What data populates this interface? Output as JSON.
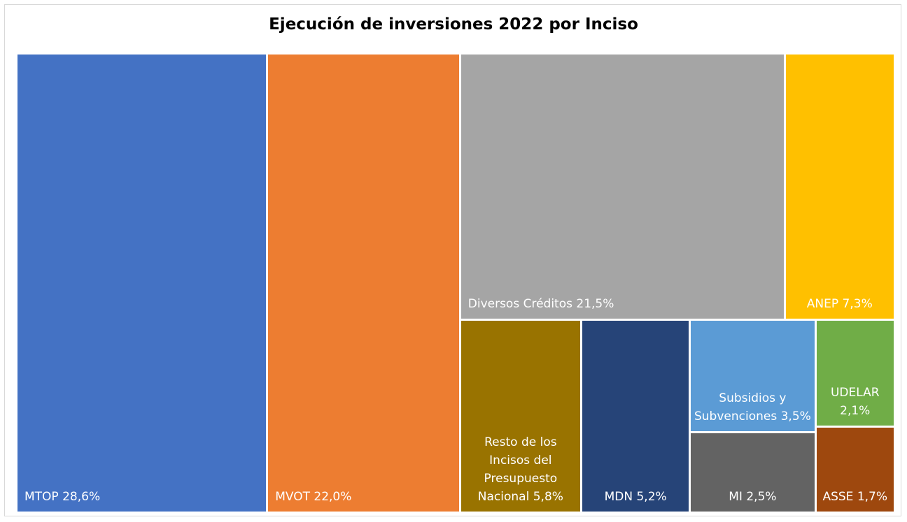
{
  "chart_data": {
    "type": "treemap",
    "title": "Ejecución de inversiones 2022 por Inciso",
    "categories": [
      "MTOP",
      "MVOT",
      "Diversos Créditos",
      "ANEP",
      "Resto de los Incisos del Presupuesto Nacional",
      "MDN",
      "Subsidios y Subvenciones",
      "MI",
      "UDELAR",
      "ASSE"
    ],
    "values": [
      28.6,
      22.0,
      21.5,
      7.3,
      5.8,
      5.2,
      3.5,
      2.5,
      2.1,
      1.7
    ],
    "value_labels": [
      "28,6%",
      "22,0%",
      "21,5%",
      "7,3%",
      "5,8%",
      "5,2%",
      "3,5%",
      "2,5%",
      "2,1%",
      "1,7%"
    ],
    "colors": [
      "#4472c4",
      "#ed7d31",
      "#a5a5a5",
      "#ffc000",
      "#997300",
      "#264478",
      "#5b9bd5",
      "#636363",
      "#70ad47",
      "#9e480e"
    ]
  }
}
